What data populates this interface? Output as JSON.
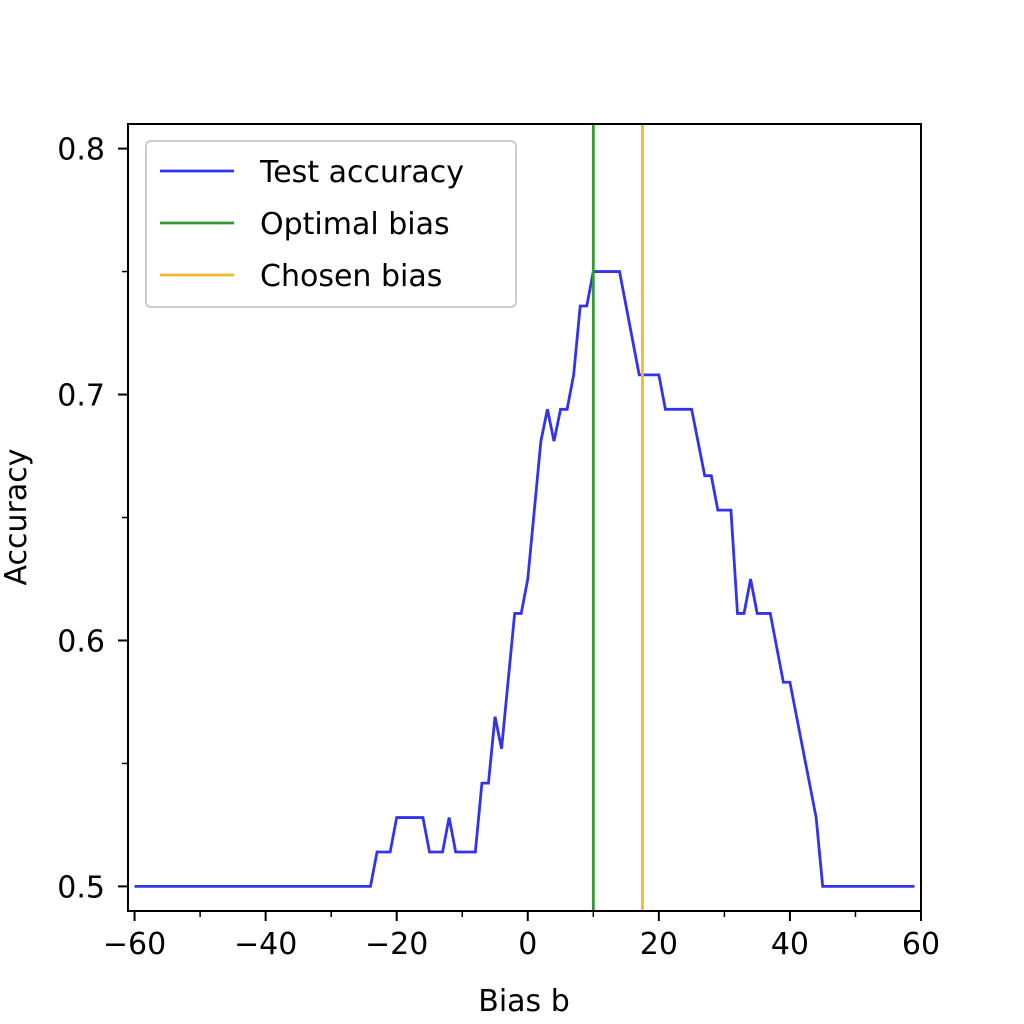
{
  "chart_data": {
    "type": "line",
    "title": "",
    "xlabel": "Bias b",
    "ylabel": "Accuracy",
    "xlim": [
      -61,
      60
    ],
    "ylim": [
      0.49,
      0.81
    ],
    "grid": false,
    "legend_position": "top-left",
    "x_ticks": [
      -60,
      -40,
      -20,
      0,
      20,
      40,
      60
    ],
    "x_tick_labels": [
      "−60",
      "−40",
      "−20",
      "0",
      "20",
      "40",
      "60"
    ],
    "x_minor_ticks": [
      -50,
      -30,
      -10,
      10,
      30,
      50
    ],
    "y_ticks": [
      0.5,
      0.6,
      0.7,
      0.8
    ],
    "y_tick_labels": [
      "0.5",
      "0.6",
      "0.7",
      "0.8"
    ],
    "y_minor_ticks": [
      0.55,
      0.65,
      0.75
    ],
    "series": [
      {
        "name": "Test accuracy",
        "color": "#3333ee",
        "kind": "line",
        "x": [
          -60,
          -24,
          -23,
          -21,
          -20,
          -16,
          -15,
          -13,
          -12,
          -11,
          -8,
          -7,
          -6,
          -5,
          -4,
          -2,
          -1,
          0,
          1,
          2,
          3,
          4,
          5,
          6,
          7,
          8,
          9,
          10,
          14,
          15,
          17,
          18,
          20,
          21,
          25,
          27,
          28,
          29,
          31,
          32,
          33,
          34,
          35,
          37,
          39,
          40,
          44,
          45,
          59
        ],
        "y": [
          0.5,
          0.5,
          0.514,
          0.514,
          0.528,
          0.528,
          0.514,
          0.514,
          0.528,
          0.514,
          0.514,
          0.542,
          0.542,
          0.569,
          0.556,
          0.611,
          0.611,
          0.625,
          0.653,
          0.681,
          0.694,
          0.681,
          0.694,
          0.694,
          0.708,
          0.736,
          0.736,
          0.75,
          0.75,
          0.736,
          0.708,
          0.708,
          0.708,
          0.694,
          0.694,
          0.667,
          0.667,
          0.653,
          0.653,
          0.611,
          0.611,
          0.625,
          0.611,
          0.611,
          0.583,
          0.583,
          0.528,
          0.5,
          0.5
        ]
      },
      {
        "name": "Optimal bias",
        "color": "#339933",
        "kind": "vline",
        "x": 10
      },
      {
        "name": "Chosen bias",
        "color": "#f5b731",
        "kind": "vline",
        "x": 17.5
      }
    ]
  }
}
